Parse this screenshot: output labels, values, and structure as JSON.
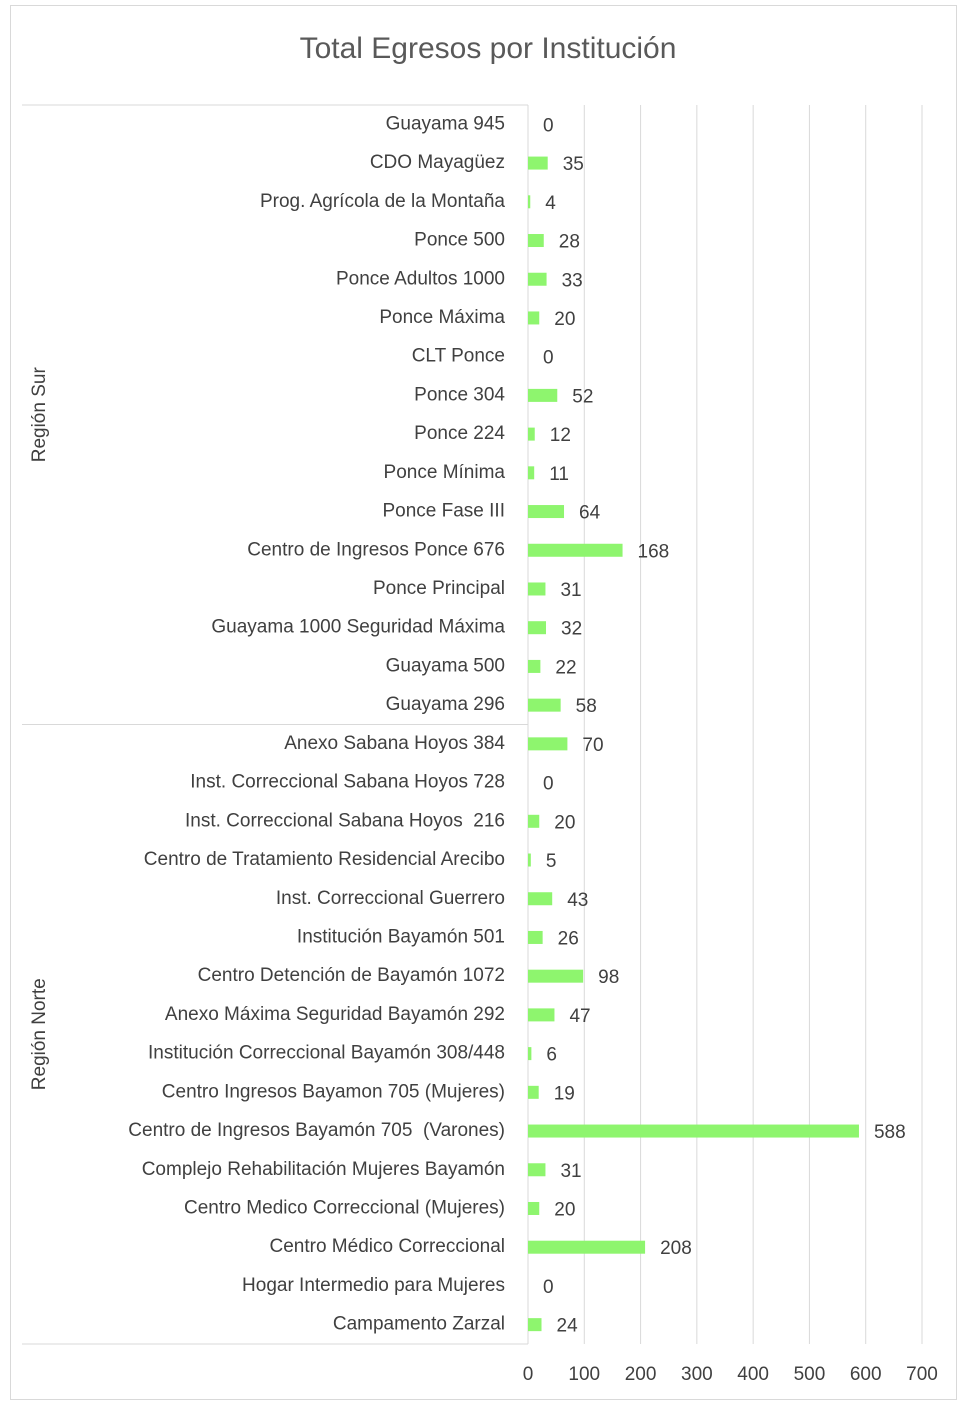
{
  "chart_data": {
    "type": "bar",
    "orientation": "horizontal",
    "title": "Total Egresos por Institución",
    "color": "#8ef56e",
    "groups": [
      {
        "name": "Región Sur",
        "categories": [
          "Guayama 945",
          "CDO Mayagüez",
          "Prog. Agrícola de la Montaña",
          "Ponce 500",
          "Ponce Adultos 1000",
          "Ponce Máxima",
          "CLT Ponce",
          "Ponce 304",
          "Ponce 224",
          "Ponce Mínima",
          "Ponce Fase III",
          "Centro de Ingresos Ponce 676",
          "Ponce Principal",
          "Guayama 1000 Seguridad Máxima",
          "Guayama 500",
          "Guayama 296"
        ],
        "values": [
          0,
          35,
          4,
          28,
          33,
          20,
          0,
          52,
          12,
          11,
          64,
          168,
          31,
          32,
          22,
          58
        ]
      },
      {
        "name": "Región Norte",
        "categories": [
          "Anexo Sabana Hoyos 384",
          "Inst. Correccional Sabana Hoyos 728",
          "Inst. Correccional Sabana Hoyos  216",
          "Centro de Tratamiento Residencial Arecibo",
          "Inst. Correccional Guerrero",
          "Institución Bayamón 501",
          "Centro Detención de Bayamón 1072",
          "Anexo Máxima Seguridad Bayamón 292",
          "Institución Correccional Bayamón 308/448",
          "Centro Ingresos Bayamon 705 (Mujeres)",
          "Centro de Ingresos Bayamón 705  (Varones)",
          "Complejo Rehabilitación Mujeres Bayamón",
          "Centro Medico Correccional (Mujeres)",
          "Centro Médico Correccional",
          "Hogar Intermedio para Mujeres",
          "Campamento Zarzal"
        ],
        "values": [
          70,
          0,
          20,
          5,
          43,
          26,
          98,
          47,
          6,
          19,
          588,
          31,
          20,
          208,
          0,
          24
        ]
      }
    ],
    "xlim": [
      0,
      700
    ],
    "xticks": [
      0,
      100,
      200,
      300,
      400,
      500,
      600,
      700
    ],
    "grid": true
  }
}
